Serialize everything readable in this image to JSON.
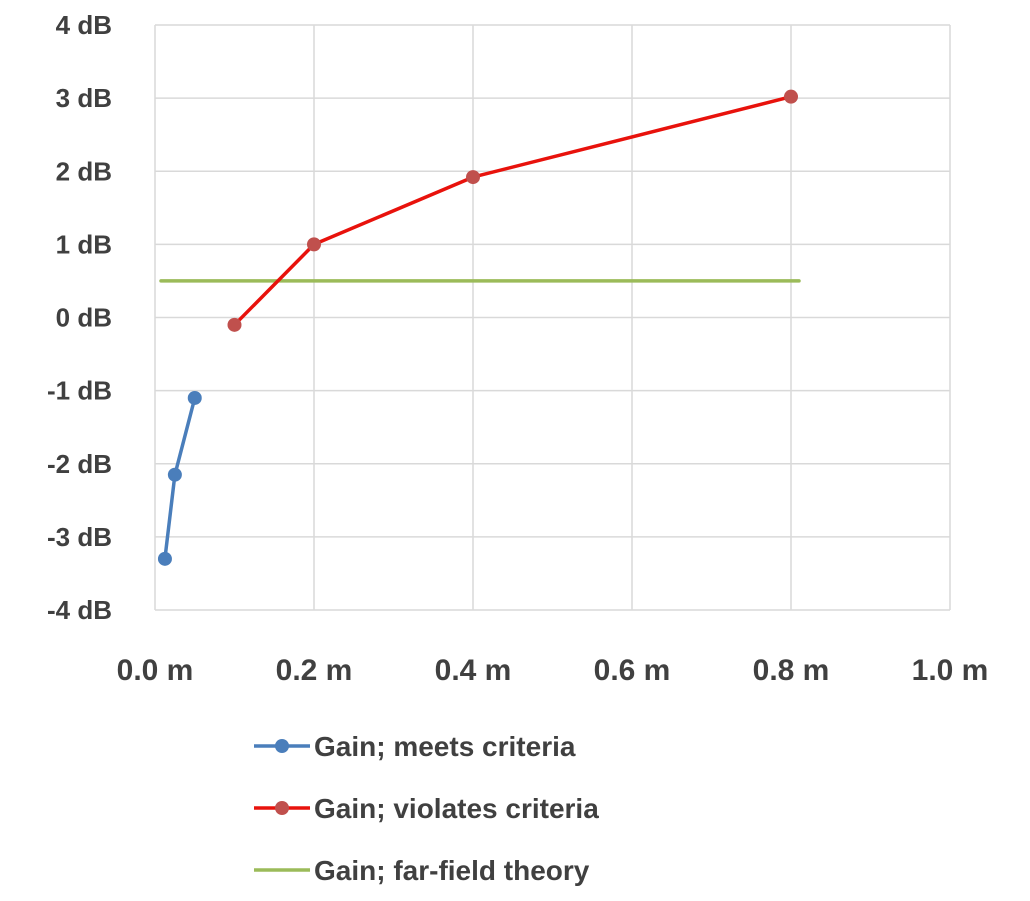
{
  "chart_data": {
    "type": "line",
    "title": "",
    "xlabel": "",
    "ylabel": "",
    "xlim": [
      0.0,
      1.0
    ],
    "ylim": [
      -4,
      4
    ],
    "x_ticks": [
      {
        "value": 0.0,
        "label": "0.0 m"
      },
      {
        "value": 0.2,
        "label": "0.2 m"
      },
      {
        "value": 0.4,
        "label": "0.4 m"
      },
      {
        "value": 0.6,
        "label": "0.6 m"
      },
      {
        "value": 0.8,
        "label": "0.8 m"
      },
      {
        "value": 1.0,
        "label": "1.0 m"
      }
    ],
    "y_ticks": [
      {
        "value": 4,
        "label": "4 dB"
      },
      {
        "value": 3,
        "label": "3 dB"
      },
      {
        "value": 2,
        "label": "2 dB"
      },
      {
        "value": 1,
        "label": "1 dB"
      },
      {
        "value": 0,
        "label": "0 dB"
      },
      {
        "value": -1,
        "label": "-1 dB"
      },
      {
        "value": -2,
        "label": "-2 dB"
      },
      {
        "value": -3,
        "label": "-3 dB"
      },
      {
        "value": -4,
        "label": "-4 dB"
      }
    ],
    "grid": true,
    "legend_position": "bottom",
    "series": [
      {
        "name": "Gain; meets criteria",
        "color": "#4a7ebb",
        "markers": true,
        "x": [
          0.0125,
          0.025,
          0.05
        ],
        "y": [
          -3.3,
          -2.15,
          -1.1
        ]
      },
      {
        "name": "Gain; violates criteria",
        "color": "#e8120c",
        "marker_color": "#c0504d",
        "markers": true,
        "x": [
          0.1,
          0.2,
          0.4,
          0.8
        ],
        "y": [
          -0.1,
          1.0,
          1.92,
          3.02
        ]
      },
      {
        "name": "Gain; far-field theory",
        "color": "#9bbb59",
        "markers": false,
        "x": [
          0.0075,
          0.81
        ],
        "y": [
          0.5,
          0.5
        ]
      }
    ]
  }
}
